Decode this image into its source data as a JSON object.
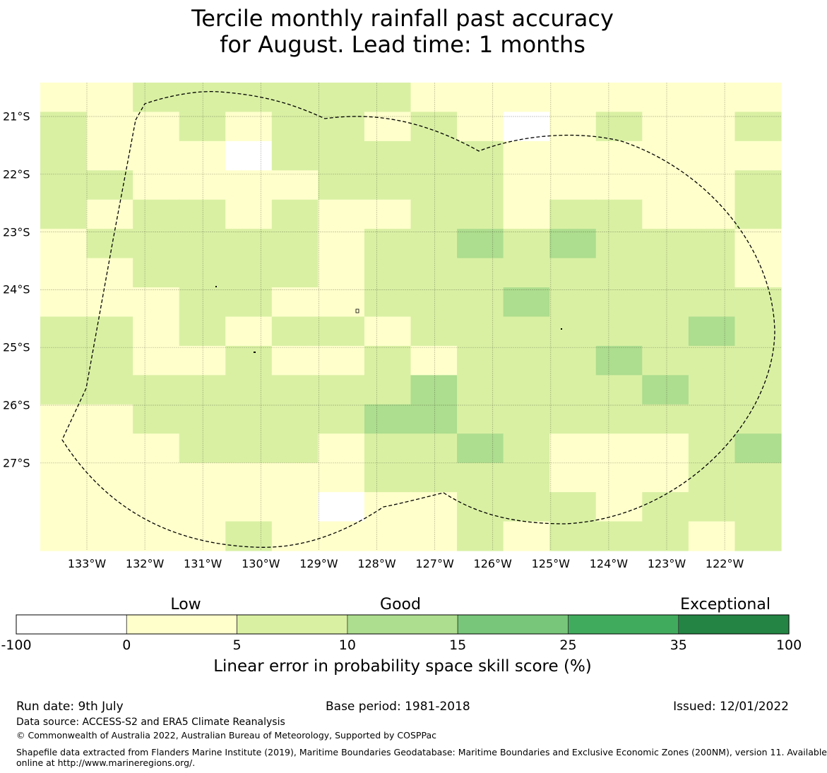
{
  "title": {
    "line1": "Tercile monthly rainfall past accuracy",
    "line2": "for August. Lead time: 1 months"
  },
  "map": {
    "lon_ticks": [
      "133°W",
      "132°W",
      "131°W",
      "130°W",
      "129°W",
      "128°W",
      "127°W",
      "126°W",
      "125°W",
      "124°W",
      "123°W",
      "122°W"
    ],
    "lat_ticks": [
      "21°S",
      "22°S",
      "23°S",
      "24°S",
      "25°S",
      "26°S",
      "27°S"
    ],
    "category_colors": [
      "#ffffff",
      "#ffffcc",
      "#d9f0a3",
      "#addd8e",
      "#78c679",
      "#41ab5d",
      "#238443"
    ],
    "grid_rows": [
      [
        1,
        1,
        2,
        2,
        2,
        2,
        2,
        2,
        1,
        1,
        1,
        1,
        1,
        1,
        1,
        1
      ],
      [
        2,
        1,
        1,
        2,
        1,
        2,
        2,
        1,
        2,
        1,
        0,
        1,
        2,
        1,
        1,
        2
      ],
      [
        2,
        1,
        1,
        1,
        0,
        2,
        2,
        2,
        2,
        2,
        1,
        1,
        1,
        1,
        1,
        1
      ],
      [
        2,
        2,
        1,
        1,
        1,
        1,
        2,
        2,
        2,
        2,
        1,
        1,
        1,
        1,
        1,
        2
      ],
      [
        2,
        1,
        2,
        2,
        1,
        2,
        1,
        1,
        2,
        2,
        1,
        2,
        2,
        1,
        1,
        2
      ],
      [
        1,
        2,
        2,
        2,
        2,
        2,
        1,
        2,
        2,
        3,
        2,
        3,
        2,
        2,
        2,
        1
      ],
      [
        1,
        1,
        2,
        2,
        2,
        2,
        1,
        2,
        2,
        2,
        2,
        2,
        2,
        2,
        2,
        1
      ],
      [
        1,
        1,
        1,
        2,
        2,
        1,
        1,
        2,
        2,
        2,
        3,
        2,
        2,
        2,
        2,
        2
      ],
      [
        2,
        2,
        1,
        2,
        1,
        2,
        2,
        1,
        2,
        2,
        2,
        2,
        2,
        2,
        3,
        2
      ],
      [
        2,
        2,
        1,
        1,
        2,
        1,
        1,
        2,
        1,
        2,
        2,
        2,
        3,
        2,
        2,
        2
      ],
      [
        2,
        2,
        2,
        2,
        2,
        2,
        2,
        2,
        3,
        2,
        2,
        2,
        2,
        3,
        2,
        2
      ],
      [
        1,
        1,
        2,
        2,
        2,
        2,
        2,
        3,
        3,
        2,
        2,
        2,
        2,
        2,
        2,
        2
      ],
      [
        1,
        1,
        1,
        2,
        2,
        2,
        1,
        2,
        2,
        3,
        2,
        1,
        1,
        1,
        2,
        3
      ],
      [
        1,
        1,
        1,
        1,
        1,
        1,
        1,
        2,
        2,
        2,
        2,
        1,
        1,
        1,
        2,
        2
      ],
      [
        1,
        1,
        1,
        1,
        1,
        1,
        0,
        1,
        1,
        2,
        2,
        2,
        1,
        2,
        2,
        2
      ],
      [
        1,
        1,
        1,
        1,
        2,
        1,
        1,
        1,
        1,
        2,
        1,
        2,
        2,
        2,
        1,
        2
      ]
    ]
  },
  "colorbar": {
    "categories": [
      "Low",
      "Good",
      "Exceptional"
    ],
    "ticks": [
      "-100",
      "0",
      "5",
      "10",
      "15",
      "25",
      "35",
      "100"
    ],
    "label": "Linear error in probability space skill score (%)"
  },
  "footer": {
    "run_date": "Run date: 9th July",
    "base_period": "Base period: 1981-2018",
    "issued": "Issued: 12/01/2022",
    "data_source": "Data source: ACCESS-S2 and ERA5 Climate Reanalysis",
    "copyright": "© Commonwealth of Australia 2022, Australian Bureau of Meteorology, Supported by COSPPac",
    "shapefile_line1": "Shapefile data extracted from Flanders Marine Institute (2019), Maritime Boundaries Geodatabase: Maritime Boundaries and Exclusive Economic Zones (200NM), version 11. Available",
    "shapefile_line2": "online at http://www.marineregions.org/."
  }
}
